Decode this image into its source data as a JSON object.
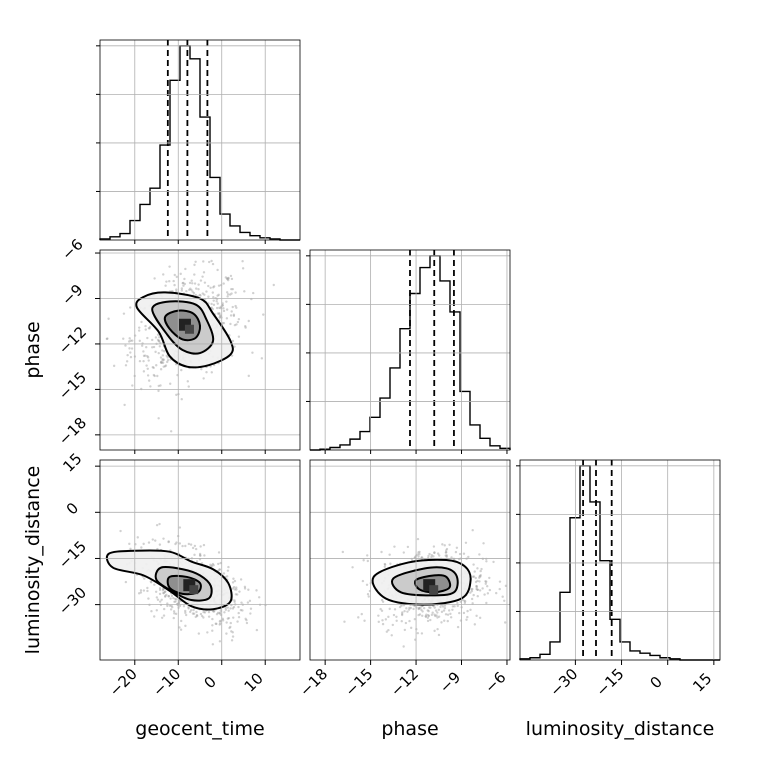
{
  "chart_data": {
    "type": "corner",
    "grid": true,
    "parameters": [
      {
        "name": "geocent_time",
        "label": "geocent_time",
        "range": [
          -28,
          18
        ],
        "ticks": [
          -20,
          -10,
          0,
          10
        ],
        "tick_labels": [
          "−20",
          "−10",
          "0",
          "10"
        ],
        "quantiles": [
          -12.4,
          -7.9,
          -3.3
        ]
      },
      {
        "name": "phase",
        "label": "phase",
        "range": [
          -19,
          -5.8
        ],
        "ticks": [
          -18,
          -15,
          -12,
          -9,
          -6
        ],
        "tick_labels": [
          "−18",
          "−15",
          "−12",
          "−9",
          "−6"
        ],
        "quantiles": [
          -12.4,
          -10.8,
          -9.5
        ]
      },
      {
        "name": "luminosity_distance",
        "label": "luminosity_distance",
        "range": [
          -48,
          17
        ],
        "ticks": [
          -30,
          -15,
          0,
          15
        ],
        "tick_labels": [
          "−30",
          "−15",
          "0",
          "15"
        ],
        "quantiles": [
          -27.5,
          -23.3,
          -18.2
        ]
      }
    ],
    "histograms": [
      {
        "param": "geocent_time",
        "edges": [
          -28,
          -25.7,
          -23.4,
          -21.1,
          -18.8,
          -16.5,
          -14.2,
          -11.9,
          -9.6,
          -7.3,
          -5.0,
          -2.7,
          -0.4,
          1.9,
          4.2,
          6.5,
          8.8,
          11.1,
          13.4,
          15.7,
          18
        ],
        "counts": [
          1,
          3,
          6,
          18,
          33,
          48,
          88,
          148,
          180,
          168,
          114,
          58,
          24,
          13,
          7,
          4,
          2,
          1,
          0,
          0
        ]
      },
      {
        "param": "phase",
        "edges": [
          -19,
          -18.34,
          -17.68,
          -17.02,
          -16.36,
          -15.7,
          -15.04,
          -14.38,
          -13.72,
          -13.06,
          -12.4,
          -11.74,
          -11.08,
          -10.42,
          -9.76,
          -9.1,
          -8.44,
          -7.78,
          -7.12,
          -6.46,
          -5.8
        ],
        "counts": [
          0,
          1,
          3,
          6,
          13,
          22,
          39,
          62,
          98,
          145,
          187,
          218,
          232,
          202,
          165,
          70,
          30,
          14,
          5,
          2
        ]
      },
      {
        "param": "luminosity_distance",
        "edges": [
          -48,
          -44.75,
          -41.5,
          -38.25,
          -35,
          -31.75,
          -28.5,
          -25.25,
          -22,
          -18.75,
          -15.5,
          -12.25,
          -9,
          -5.75,
          -2.5,
          0.75,
          4,
          7.25,
          10.5,
          13.75,
          17
        ],
        "counts": [
          1,
          2,
          5,
          16,
          60,
          126,
          172,
          140,
          88,
          36,
          16,
          8,
          6,
          4,
          2,
          1,
          0,
          0,
          0,
          0
        ]
      }
    ],
    "pairs": [
      {
        "x": "geocent_time",
        "y": "phase",
        "center": [
          -8,
          -10.8
        ],
        "spread": [
          5.5,
          1.5
        ],
        "corr": 0.25,
        "contour_levels": [
          {
            "points": [
              [
                -19.5,
                -9.6
              ],
              [
                -18,
                -8.9
              ],
              [
                -13,
                -8.6
              ],
              [
                -5,
                -9
              ],
              [
                -2,
                -10
              ],
              [
                2,
                -11.8
              ],
              [
                2,
                -12.7
              ],
              [
                -3,
                -13.4
              ],
              [
                -8,
                -13.5
              ],
              [
                -12,
                -12.8
              ],
              [
                -14.5,
                -11.2
              ]
            ]
          },
          {
            "points": [
              [
                -16,
                -9.7
              ],
              [
                -12,
                -9.2
              ],
              [
                -6,
                -9.4
              ],
              [
                -3.5,
                -10.4
              ],
              [
                -2,
                -11.8
              ],
              [
                -5,
                -12.6
              ],
              [
                -9,
                -12.4
              ],
              [
                -12.5,
                -11.4
              ]
            ]
          },
          {
            "points": [
              [
                -13,
                -10.2
              ],
              [
                -10,
                -9.8
              ],
              [
                -6.5,
                -10
              ],
              [
                -5,
                -10.8
              ],
              [
                -6,
                -11.6
              ],
              [
                -9,
                -11.7
              ],
              [
                -12,
                -11
              ]
            ]
          }
        ]
      },
      {
        "x": "geocent_time",
        "y": "luminosity_distance",
        "center": [
          -7,
          -24
        ],
        "spread": [
          5.0,
          5.5
        ],
        "corr": 0.45,
        "contour_levels": [
          {
            "points": [
              [
                -26,
                -13.5
              ],
              [
                -20,
                -12.5
              ],
              [
                -12,
                -12.8
              ],
              [
                -7,
                -16
              ],
              [
                -2,
                -18.5
              ],
              [
                1.5,
                -23
              ],
              [
                2,
                -29
              ],
              [
                -2,
                -31.5
              ],
              [
                -7,
                -30.5
              ],
              [
                -12,
                -25.5
              ],
              [
                -18,
                -20.5
              ],
              [
                -25,
                -18
              ]
            ]
          },
          {
            "points": [
              [
                -14,
                -18
              ],
              [
                -9,
                -18.5
              ],
              [
                -5,
                -20.5
              ],
              [
                -2.5,
                -24
              ],
              [
                -3,
                -28
              ],
              [
                -7,
                -28.5
              ],
              [
                -11,
                -26
              ],
              [
                -15,
                -22
              ]
            ]
          },
          {
            "points": [
              [
                -12,
                -21
              ],
              [
                -8,
                -21
              ],
              [
                -5,
                -23
              ],
              [
                -5.5,
                -26
              ],
              [
                -9,
                -26.5
              ],
              [
                -12,
                -24.5
              ]
            ]
          }
        ]
      },
      {
        "x": "phase",
        "y": "luminosity_distance",
        "center": [
          -11,
          -24
        ],
        "spread": [
          1.5,
          5.5
        ],
        "corr": 0.1,
        "contour_levels": [
          {
            "points": [
              [
                -14.8,
                -21
              ],
              [
                -12.5,
                -16.3
              ],
              [
                -10,
                -15.5
              ],
              [
                -8.8,
                -17.5
              ],
              [
                -8.4,
                -22
              ],
              [
                -9,
                -28
              ],
              [
                -11.5,
                -30
              ],
              [
                -14,
                -28
              ]
            ]
          },
          {
            "points": [
              [
                -13.5,
                -21.5
              ],
              [
                -11.5,
                -18.3
              ],
              [
                -10,
                -18.2
              ],
              [
                -9.3,
                -21
              ],
              [
                -9.5,
                -26
              ],
              [
                -11,
                -27
              ],
              [
                -13,
                -26
              ]
            ]
          },
          {
            "points": [
              [
                -12,
                -22
              ],
              [
                -10.8,
                -20.5
              ],
              [
                -10,
                -21
              ],
              [
                -9.8,
                -24.5
              ],
              [
                -10.8,
                -26
              ],
              [
                -11.8,
                -25
              ]
            ]
          }
        ]
      }
    ]
  },
  "labels": {
    "x0": "geocent_time",
    "x1": "phase",
    "x2": "luminosity_distance",
    "y1": "phase",
    "y2": "luminosity_distance"
  }
}
